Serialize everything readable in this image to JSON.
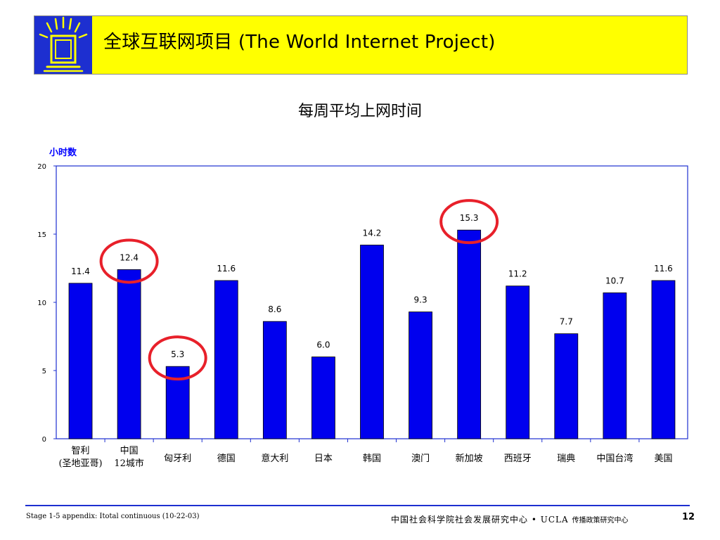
{
  "header": {
    "title": "全球互联网项目 (The World Internet Project)",
    "logo_icon": "world-internet-project-logo-icon",
    "bar_color": "#ffff00",
    "logo_color": "#1d2fd0"
  },
  "chart_data": {
    "type": "bar",
    "title": "每周平均上网时间",
    "ylabel": "小时数",
    "xlabel": "",
    "ylim": [
      0,
      20
    ],
    "yticks": [
      0,
      5,
      10,
      15,
      20
    ],
    "categories": [
      [
        "智利",
        "(圣地亚哥)"
      ],
      [
        "中国",
        "12城市"
      ],
      [
        "匈牙利"
      ],
      [
        "德国"
      ],
      [
        "意大利"
      ],
      [
        "日本"
      ],
      [
        "韩国"
      ],
      [
        "澳门"
      ],
      [
        "新加坡"
      ],
      [
        "西班牙"
      ],
      [
        "瑞典"
      ],
      [
        "中国台湾"
      ],
      [
        "美国"
      ]
    ],
    "values": [
      11.4,
      12.4,
      5.3,
      11.6,
      8.6,
      6.0,
      14.2,
      9.3,
      15.3,
      11.2,
      7.7,
      10.7,
      11.6
    ],
    "value_labels": [
      "11.4",
      "12.4",
      "5.3",
      "11.6",
      "8.6",
      "6.0",
      "14.2",
      "9.3",
      "15.3",
      "11.2",
      "7.7",
      "10.7",
      "11.6"
    ],
    "highlighted": [
      1,
      2,
      8
    ],
    "bar_color": "#0000ee",
    "highlight_color": "#e8202a",
    "frame_color": "#1d2fd0",
    "grid": false,
    "legend": "none"
  },
  "footer": {
    "left": "Stage 1-5 appendix: Itotal continuous (10-22-03)",
    "center": "中国社会科学院社会发展研究中心 • UCLA",
    "center_sub": "传播政策研究中心",
    "page": "12"
  }
}
